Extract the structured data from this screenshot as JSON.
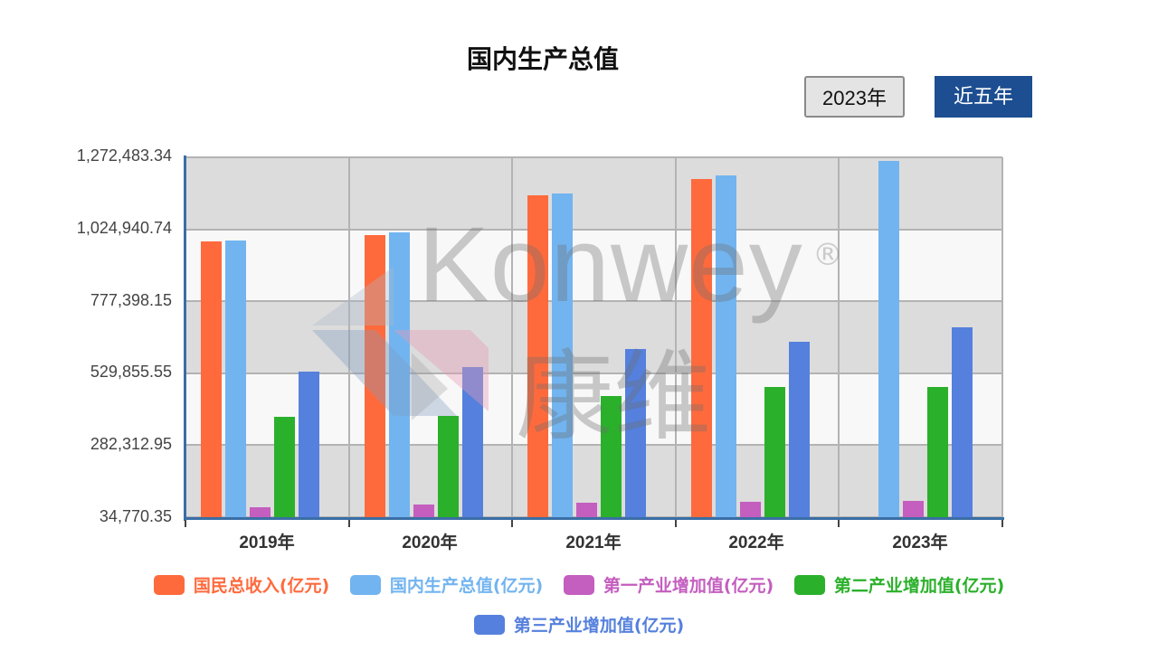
{
  "title": "国内生产总值",
  "buttons": {
    "year": "2023年",
    "five_years": "近五年"
  },
  "colors": {
    "gni": "#ff6a3d",
    "gdp": "#72b4f0",
    "primary": "#c45ebf",
    "secondary": "#2bb02b",
    "tertiary": "#5580dd",
    "button_active": "#1c4e91",
    "axis": "#3a6ea5"
  },
  "y_ticks": [
    "1,272,483.34",
    "1,024,940.74",
    "777,398.15",
    "529,855.55",
    "282,312.95",
    "34,770.35"
  ],
  "x_labels": [
    "2019年",
    "2020年",
    "2021年",
    "2022年",
    "2023年"
  ],
  "legend": [
    "国民总收入(亿元)",
    "国内生产总值(亿元)",
    "第一产业增加值(亿元)",
    "第二产业增加值(亿元)",
    "第三产业增加值(亿元)"
  ],
  "watermark": {
    "text": "Konwey",
    "registered": "®",
    "cn": "康维"
  },
  "chart_data": {
    "type": "bar",
    "title": "国内生产总值",
    "categories": [
      "2019年",
      "2020年",
      "2021年",
      "2022年",
      "2023年"
    ],
    "series": [
      {
        "name": "国民总收入(亿元)",
        "values": [
          983751,
          1005451,
          1141231,
          1197215,
          null
        ]
      },
      {
        "name": "国内生产总值(亿元)",
        "values": [
          986515,
          1013567,
          1149237,
          1210207,
          1260582
        ]
      },
      {
        "name": "第一产业增加值(亿元)",
        "values": [
          70474,
          78031,
          83086,
          88345,
          89755
        ]
      },
      {
        "name": "第二产业增加值(亿元)",
        "values": [
          380671,
          383562,
          451544,
          483164,
          482589
        ]
      },
      {
        "name": "第三产业增加值(亿元)",
        "values": [
          535371,
          551974,
          614476,
          638698,
          688238
        ]
      }
    ],
    "xlabel": "",
    "ylabel": "",
    "ylim": [
      34770.35,
      1272483.34
    ],
    "y_ticks": [
      34770.35,
      282312.95,
      529855.55,
      777398.15,
      1024940.74,
      1272483.34
    ],
    "grid": true,
    "legend_position": "bottom"
  }
}
